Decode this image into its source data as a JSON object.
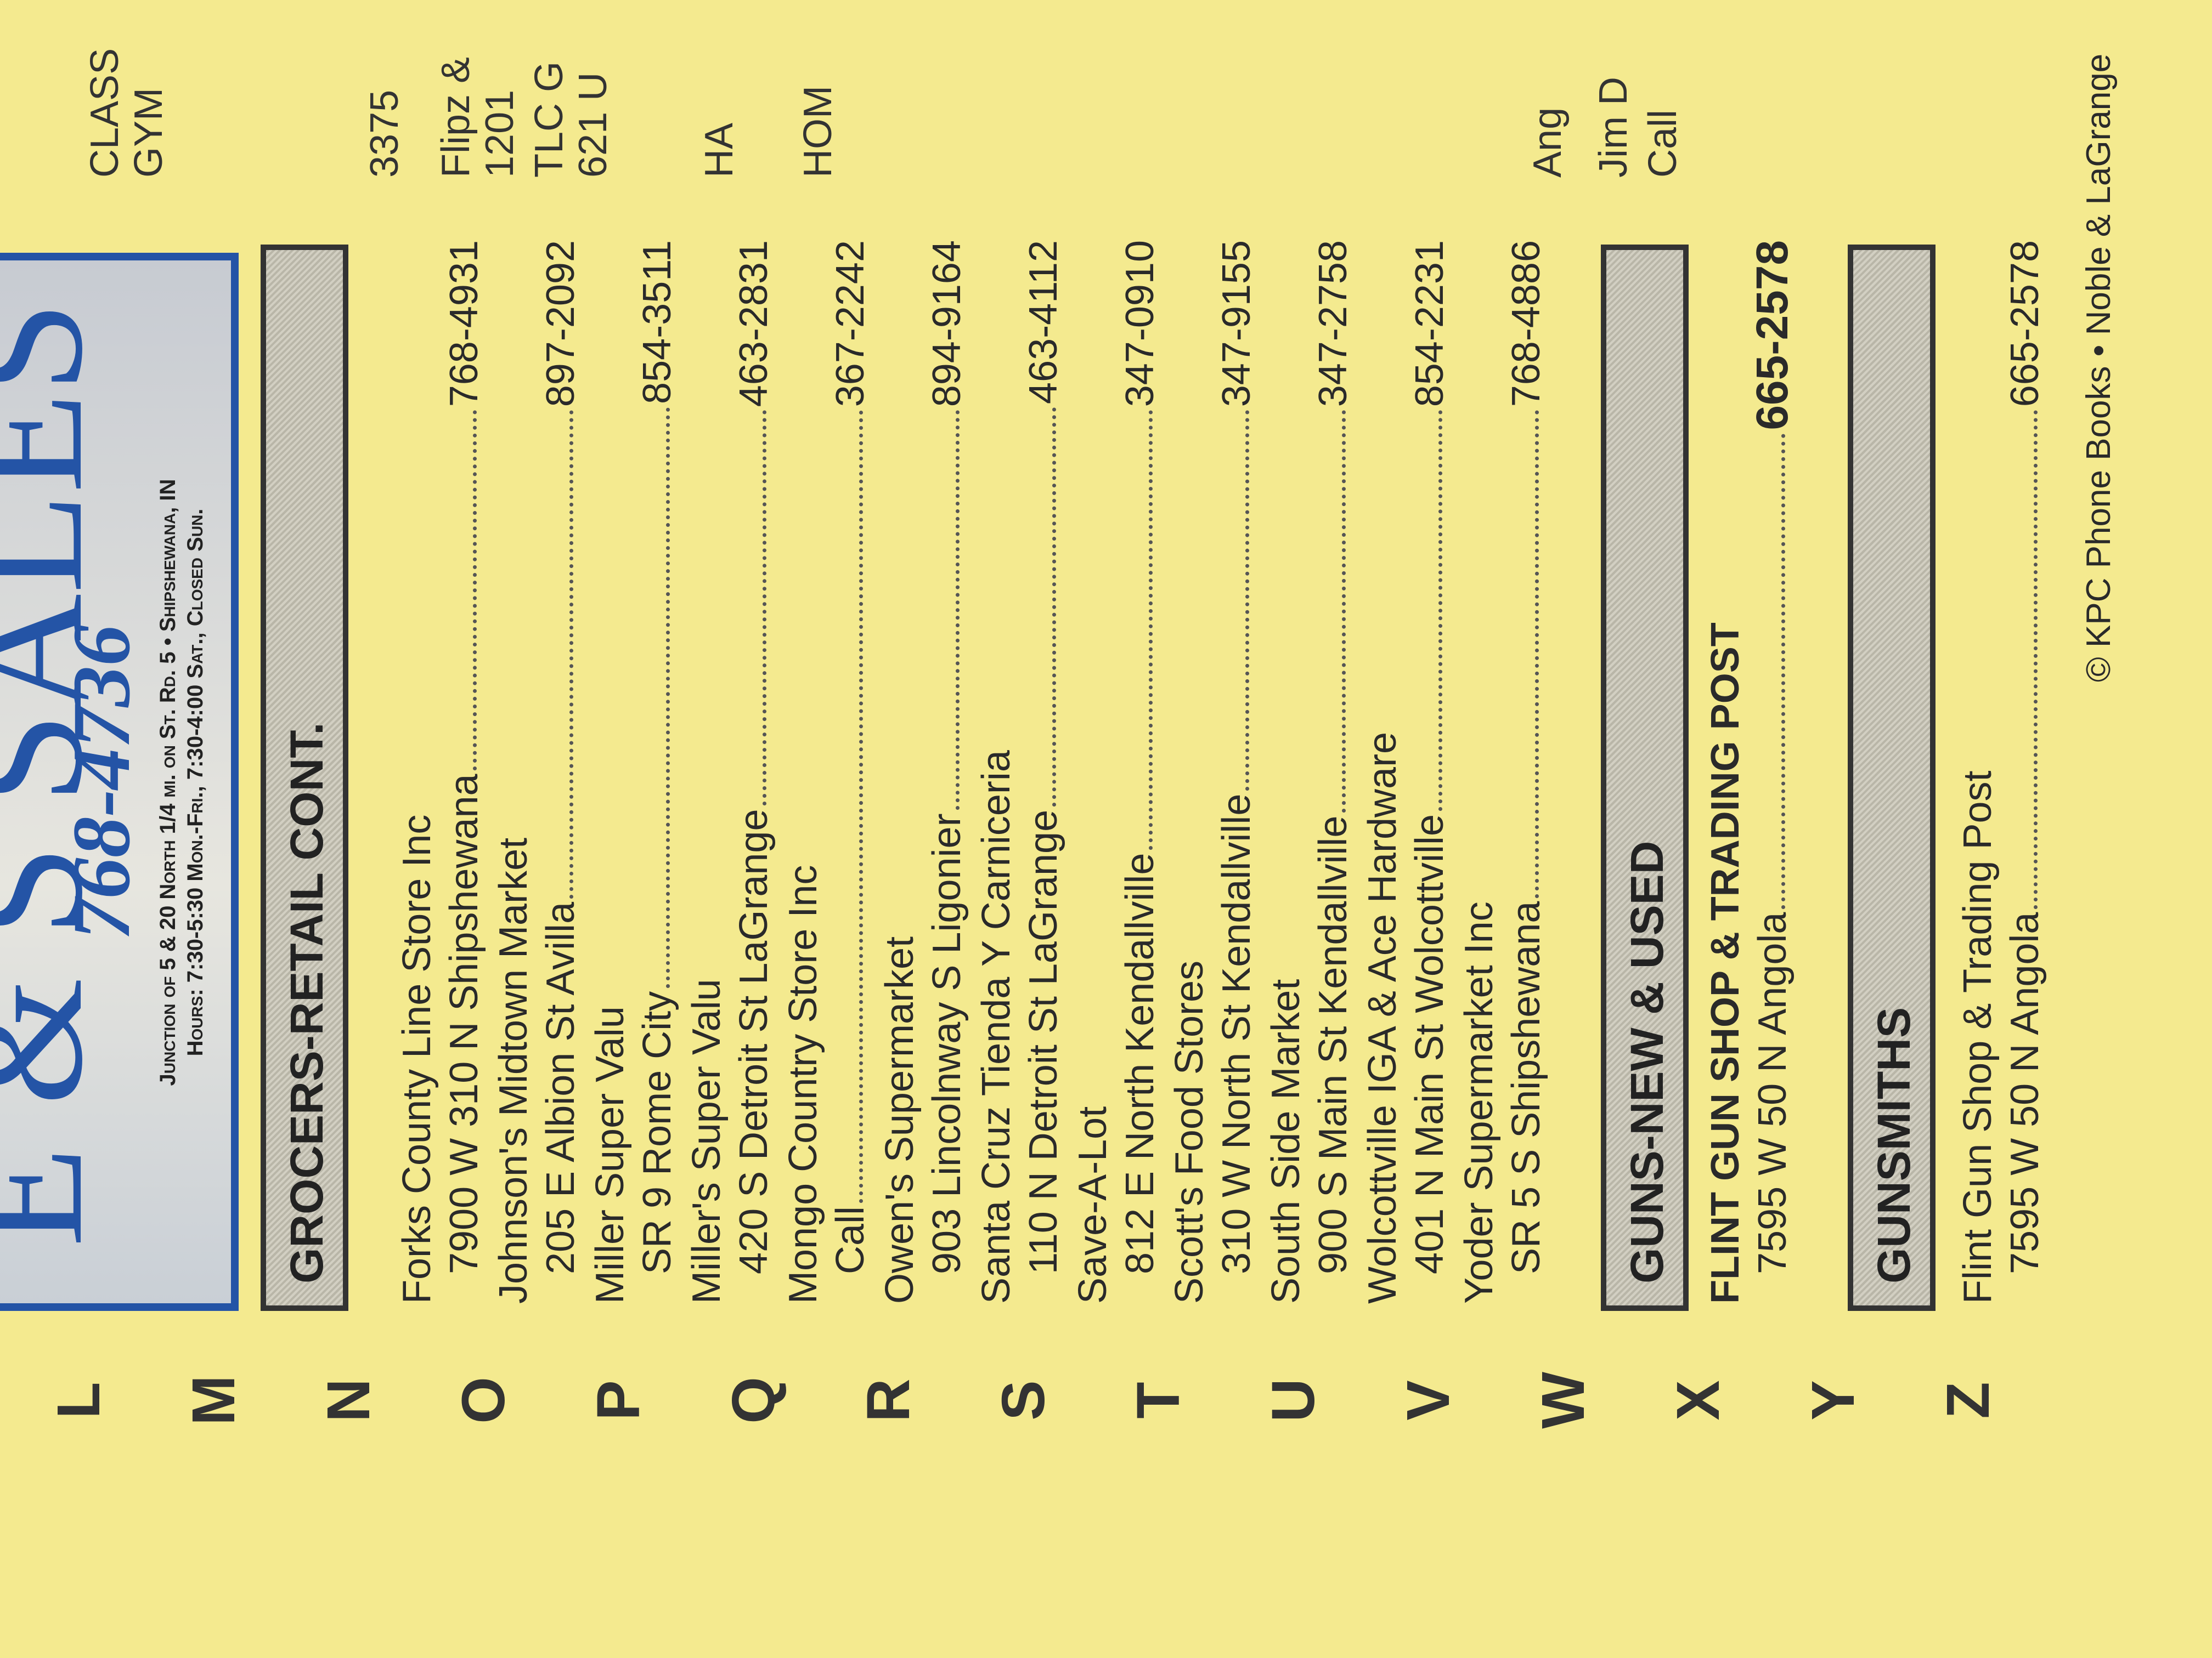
{
  "ad": {
    "name": "E & S SALES",
    "phone": "768-4736",
    "location": "Junction of 5 & 20 North 1/4 mi. on St. Rd. 5 • Shipshewana, IN",
    "hours": "Hours: 7:30-5:30 Mon.-Fri., 7:30-4:00 Sat., Closed Sun."
  },
  "index_letters": [
    "L",
    "M",
    "N",
    "O",
    "P",
    "Q",
    "R",
    "S",
    "T",
    "U",
    "V",
    "W",
    "X",
    "Y",
    "Z"
  ],
  "sections": [
    {
      "heading": "GROCERS-RETAIL CONT.",
      "listings": [
        {
          "name": "Forks County Line Store Inc",
          "address": "7900 W 310 N Shipshewana",
          "phone": "768-4931"
        },
        {
          "name": "Johnson's Midtown Market",
          "address": "205 E Albion St Avilla",
          "phone": "897-2092"
        },
        {
          "name": "Miller Super Valu",
          "address": "SR 9 Rome City",
          "phone": "854-3511"
        },
        {
          "name": "Miller's Super Valu",
          "address": "420 S Detroit St LaGrange",
          "phone": "463-2831"
        },
        {
          "name": "Mongo Country Store Inc",
          "address": "Call",
          "phone": "367-2242"
        },
        {
          "name": "Owen's Supermarket",
          "address": "903 Lincolnway S Ligonier",
          "phone": "894-9164"
        },
        {
          "name": "Santa Cruz Tienda Y Carniceria",
          "address": "110 N Detroit St LaGrange",
          "phone": "463-4112"
        },
        {
          "name": "Save-A-Lot",
          "address": "812 E North Kendallville",
          "phone": "347-0910"
        },
        {
          "name": "Scott's Food Stores",
          "address": "310 W North St Kendallville",
          "phone": "347-9155"
        },
        {
          "name": "South Side Market",
          "address": "900 S Main St Kendallville",
          "phone": "347-2758"
        },
        {
          "name": "Wolcottville IGA & Ace Hardware",
          "address": "401 N Main St Wolcottville",
          "phone": "854-2231"
        },
        {
          "name": "Yoder Supermarket Inc",
          "address": "SR 5 S Shipshewana",
          "phone": "768-4886"
        }
      ]
    },
    {
      "heading": "GUNS-NEW & USED",
      "listings": [
        {
          "name": "FLINT GUN SHOP & TRADING POST",
          "address": "7595 W 50 N Angola",
          "phone": "665-2578",
          "bold": true
        }
      ]
    },
    {
      "heading": "GUNSMITHS",
      "listings": [
        {
          "name": "Flint Gun Shop & Trading Post",
          "address": "7595 W 50 N Angola",
          "phone": "665-2578"
        }
      ]
    }
  ],
  "side_column": [
    "CLASS",
    "GYM",
    "3375",
    "Flipz &",
    "1201",
    "TLC G",
    "621 U",
    "HA",
    "HOM",
    "Ang",
    "Jim D",
    "Call"
  ],
  "footer": "© KPC Phone Books • Noble & LaGrange"
}
